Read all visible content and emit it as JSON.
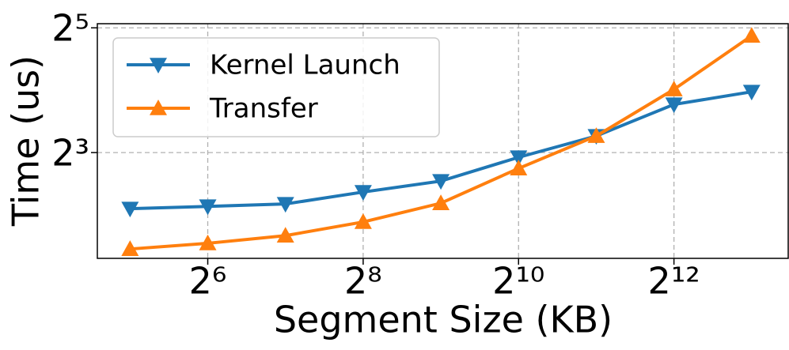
{
  "chart_data": {
    "type": "line",
    "x_label": "Segment Size (KB)",
    "y_label": "Time (us)",
    "x": [
      32,
      64,
      128,
      256,
      512,
      1024,
      2048,
      4096,
      8192
    ],
    "series": [
      {
        "name": "Kernel Launch",
        "color": "#1f77b4",
        "marker": "triangle-down",
        "values": [
          4.29,
          4.4,
          4.52,
          5.16,
          5.83,
          7.59,
          9.62,
          13.66,
          15.72
        ]
      },
      {
        "name": "Transfer",
        "color": "#ff7f0e",
        "marker": "triangle-up",
        "values": [
          2.74,
          2.92,
          3.18,
          3.7,
          4.56,
          6.71,
          9.62,
          16.15,
          29.3
        ]
      }
    ],
    "xscale": "log2",
    "yscale": "log2",
    "xlim": [
      23.9,
      11430
    ],
    "ylim": [
      2.47,
      33.5
    ],
    "xticks": [
      {
        "value": 64,
        "label": "2⁶"
      },
      {
        "value": 256,
        "label": "2⁸"
      },
      {
        "value": 1024,
        "label": "2¹⁰"
      },
      {
        "value": 4096,
        "label": "2¹²"
      }
    ],
    "yticks": [
      {
        "value": 8,
        "label": "2³"
      },
      {
        "value": 32,
        "label": "2⁵"
      }
    ],
    "grid": true,
    "legend": "upper left"
  }
}
